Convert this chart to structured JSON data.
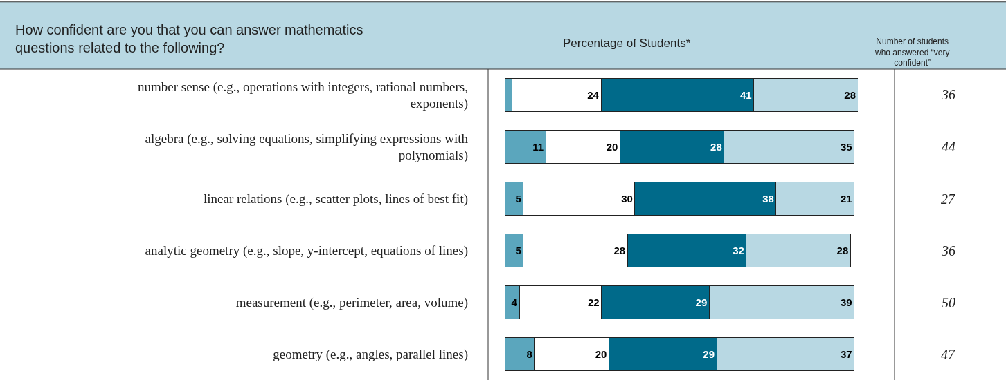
{
  "chart_data": {
    "type": "bar",
    "orientation": "horizontal",
    "stacked": true,
    "title": "How confident are you that you can answer mathematics questions related to the following?",
    "xlabel": "Percentage of Students*",
    "categories": [
      "number sense (e.g., operations with integers, rational numbers, exponents)",
      "algebra (e.g., solving equations, simplifying expressions with polynomials)",
      "linear relations (e.g., scatter plots, lines of best fit)",
      "analytic geometry (e.g., slope, y-intercept, equations of lines)",
      "measurement (e.g., perimeter, area, volume)",
      "geometry (e.g., angles, parallel lines)"
    ],
    "series": [
      {
        "color": "#5ba6bd",
        "values": [
          2,
          11,
          5,
          5,
          4,
          8
        ],
        "value_labels": [
          null,
          "11",
          "5",
          "5",
          "4",
          "8"
        ]
      },
      {
        "color": "#ffffff",
        "values": [
          24,
          20,
          30,
          28,
          22,
          20
        ],
        "value_labels": [
          "24",
          "20",
          "30",
          "28",
          "22",
          "20"
        ]
      },
      {
        "color": "#006a8a",
        "values": [
          41,
          28,
          38,
          32,
          29,
          29
        ],
        "value_labels": [
          "41",
          "28",
          "38",
          "32",
          "29",
          "29"
        ]
      },
      {
        "color": "#b8d8e3",
        "values": [
          28,
          35,
          21,
          28,
          39,
          37
        ],
        "value_labels": [
          "28",
          "35",
          "21",
          "28",
          "39",
          "37"
        ]
      }
    ],
    "annotations": [
      "Number of students who answered “very confident”",
      "36",
      "44",
      "27",
      "36",
      "50",
      "47"
    ]
  }
}
